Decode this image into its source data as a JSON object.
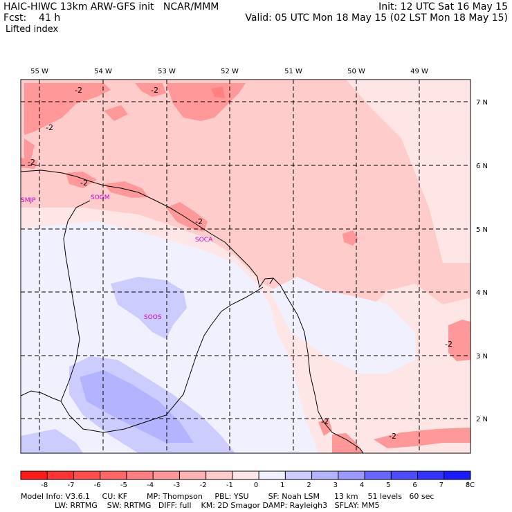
{
  "header": {
    "model_title": "HAIC-HIWC 13km ARW-GFS init   NCAR/MMM",
    "forecast": "Fcst:    41 h",
    "field": "Lifted index",
    "init": "Init: 12 UTC Sat 16 May 15",
    "valid": "Valid: 05 UTC Mon 18 May 15 (02 LST Mon 18 May 15)"
  },
  "map": {
    "lon_labels": [
      "55 W",
      "54 W",
      "53 W",
      "52 W",
      "51 W",
      "50 W",
      "49 W"
    ],
    "lat_labels": [
      "7 N",
      "6 N",
      "5 N",
      "4 N",
      "3 N",
      "2 N"
    ],
    "contour_labels": [
      "-2",
      "-2",
      "-2",
      "-2",
      "-2",
      "-2",
      "-2",
      "-2",
      "-2"
    ],
    "stations": [
      "SMJP",
      "SOGM",
      "SOCA",
      "SOOS"
    ]
  },
  "colorbar": {
    "ticks": [
      "-8",
      "-7",
      "-6",
      "-5",
      "-4",
      "-3",
      "-2",
      "-1",
      "0",
      "1",
      "2",
      "3",
      "4",
      "5",
      "6",
      "7",
      "8"
    ],
    "unit": "°C",
    "colors": [
      "#ff1a1a",
      "#ff3333",
      "#ff4d4d",
      "#ff6666",
      "#ff8080",
      "#ff9999",
      "#ffb3b3",
      "#ffcccc",
      "#ffe6e6",
      "#f0f0ff",
      "#ccccff",
      "#b3b3ff",
      "#9999ff",
      "#6666ff",
      "#4d4dff",
      "#3333ff",
      "#1a1aff"
    ]
  },
  "footer": {
    "line1": "Model Info: V3.6.1     CU: KF        MP: Thompson     PBL: YSU        SF: Noah LSM      13 km    51 levels   60 sec",
    "line2": "              LW: RRTMG    SW: RRTMG   DIFF: full    KM: 2D Smagor DAMP: Rayleigh3   SFLAY: MM5"
  }
}
